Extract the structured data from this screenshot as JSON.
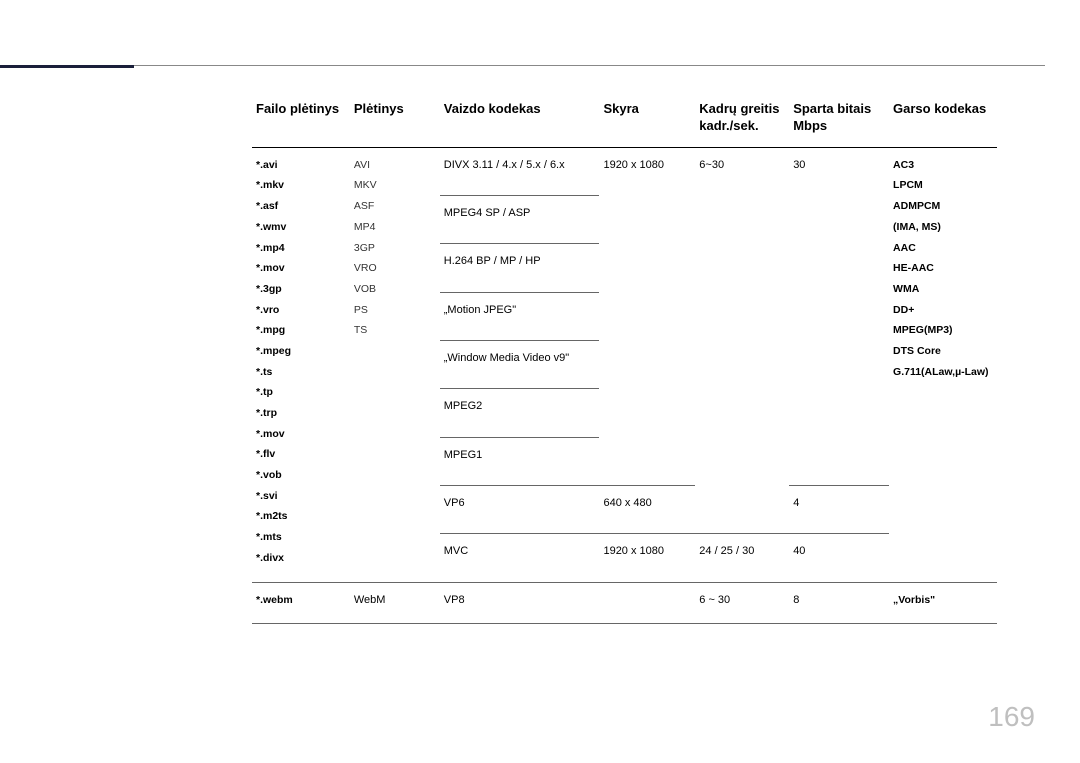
{
  "page_number": "169",
  "header_bar_color": "#1a1f3a",
  "columns": [
    "Failo plėtinys",
    "Plėtinys",
    "Vaizdo kodekas",
    "Skyra",
    "Kadrų greitis kadr./sek.",
    "Sparta bitais Mbps",
    "Garso kodekas"
  ],
  "file_extensions": [
    "*.avi",
    "*.mkv",
    "*.asf",
    "*.wmv",
    "*.mp4",
    "*.mov",
    "*.3gp",
    "*.vro",
    "*.mpg",
    "*.mpeg",
    "*.ts",
    "*.tp",
    "*.trp",
    "*.mov",
    "*.flv",
    "*.vob",
    "*.svi",
    "*.m2ts",
    "*.mts",
    "*.divx"
  ],
  "containers": [
    "AVI",
    "MKV",
    "ASF",
    "MP4",
    "3GP",
    "VRO",
    "VOB",
    "PS",
    "TS"
  ],
  "audio_codecs": [
    "AC3",
    "LPCM",
    "ADMPCM",
    "(IMA, MS)",
    "AAC",
    "HE-AAC",
    "WMA",
    "DD+",
    "MPEG(MP3)",
    "DTS Core",
    "G.711(ALaw,µ-Law)"
  ],
  "video_rows": [
    {
      "codec": "DIVX 3.11 / 4.x / 5.x / 6.x",
      "res": "1920 x 1080",
      "fps": "6~30",
      "bitrate": "30"
    },
    {
      "codec": "MPEG4 SP / ASP",
      "res": "",
      "fps": "",
      "bitrate": ""
    },
    {
      "codec": "H.264 BP / MP / HP",
      "res": "",
      "fps": "",
      "bitrate": ""
    },
    {
      "codec": "„Motion JPEG\"",
      "res": "",
      "fps": "",
      "bitrate": ""
    },
    {
      "codec": "„Window Media Video v9\"",
      "res": "",
      "fps": "",
      "bitrate": ""
    },
    {
      "codec": "MPEG2",
      "res": "",
      "fps": "",
      "bitrate": ""
    },
    {
      "codec": "MPEG1",
      "res": "",
      "fps": "",
      "bitrate": ""
    },
    {
      "codec": "VP6",
      "res": "640 x 480",
      "fps": "",
      "bitrate": "4"
    },
    {
      "codec": "MVC",
      "res": "1920 x 1080",
      "fps": "24 / 25 / 30",
      "bitrate": "40"
    }
  ],
  "webm_row": {
    "ext": "*.webm",
    "container": "WebM",
    "codec": "VP8",
    "res": "",
    "fps": "6 ~ 30",
    "bitrate": "8",
    "acodec": "„Vorbis\""
  }
}
